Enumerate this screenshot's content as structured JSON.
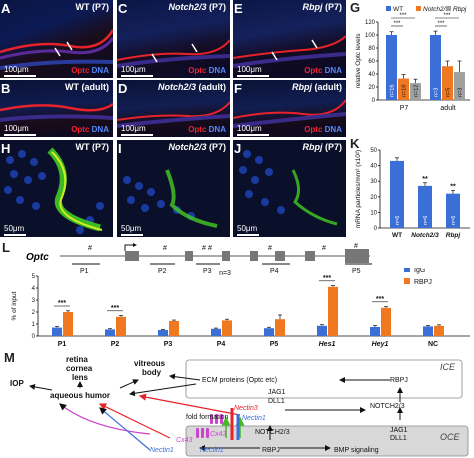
{
  "panels": {
    "A": {
      "letter": "A",
      "title": "WT (P7)",
      "scale": "100μm",
      "stain_a": "Optc",
      "stain_b": "DNA"
    },
    "B": {
      "letter": "B",
      "title": "WT (adult)",
      "scale": "100μm",
      "stain_a": "Optc",
      "stain_b": "DNA"
    },
    "C": {
      "letter": "C",
      "title_it": "Notch2/3",
      "title_rest": " (P7)",
      "scale": "100μm",
      "stain_a": "Optc",
      "stain_b": "DNA"
    },
    "D": {
      "letter": "D",
      "title_it": "Notch2/3",
      "title_rest": " (adult)",
      "scale": "100μm",
      "stain_a": "Optc",
      "stain_b": "DNA"
    },
    "E": {
      "letter": "E",
      "title_it": "Rbpj",
      "title_rest": " (P7)",
      "scale": "100μm",
      "stain_a": "Optc",
      "stain_b": "DNA"
    },
    "F": {
      "letter": "F",
      "title_it": "Rbpj",
      "title_rest": " (adult)",
      "scale": "100μm",
      "stain_a": "Optc",
      "stain_b": "DNA"
    },
    "H": {
      "letter": "H",
      "title": "WT (P7)",
      "scale": "50μm"
    },
    "I": {
      "letter": "I",
      "title_it": "Notch2/3",
      "title_rest": " (P7)",
      "scale": "50μm"
    },
    "J": {
      "letter": "J",
      "title_it": "Rbpj",
      "title_rest": " (P7)",
      "scale": "50μm"
    },
    "G": {
      "letter": "G"
    },
    "K": {
      "letter": "K"
    },
    "L": {
      "letter": "L"
    },
    "M": {
      "letter": "M"
    }
  },
  "chart_data": [
    {
      "id": "G",
      "type": "bar",
      "ylabel": "relative Optc levels",
      "ylim": [
        0,
        120
      ],
      "yticks": [
        0,
        20,
        40,
        60,
        80,
        100,
        120
      ],
      "categories": [
        "P7",
        "adult"
      ],
      "series": [
        {
          "name": "WT",
          "color": "#3a6fd8",
          "values": [
            100,
            100
          ],
          "errors": [
            5,
            6
          ],
          "n": [
            "n=16",
            "n=3"
          ]
        },
        {
          "name": "Notch2/3",
          "color": "#f07820",
          "values": [
            33,
            52
          ],
          "errors": [
            6,
            8
          ],
          "n": [
            "n=10",
            "n=5"
          ]
        },
        {
          "name": "Rbpj",
          "color": "#a0a0a0",
          "values": [
            26,
            43
          ],
          "errors": [
            6,
            17
          ],
          "n": [
            "n=12",
            "n=3"
          ]
        }
      ],
      "sig": [
        "***",
        "***",
        "***",
        "***"
      ]
    },
    {
      "id": "K",
      "type": "bar",
      "ylabel": "mRNA particles/mm² (x10²)",
      "ylim": [
        0,
        50
      ],
      "yticks": [
        0,
        10,
        20,
        30,
        40,
        50
      ],
      "categories": [
        "WT",
        "Notch2/3",
        "Rbpj"
      ],
      "values": [
        43,
        27,
        22
      ],
      "errors": [
        2,
        2,
        2
      ],
      "n": [
        "n=6",
        "n=6",
        "n=6"
      ],
      "sig": [
        "",
        "**",
        "**"
      ],
      "color": "#3a6fd8"
    },
    {
      "id": "L",
      "type": "bar",
      "title": "n=3",
      "ylabel": "% of input",
      "ylim": [
        0,
        5
      ],
      "yticks": [
        0,
        1,
        2,
        3,
        4,
        5
      ],
      "categories": [
        "P1",
        "P2",
        "P3",
        "P4",
        "P5",
        "Hes1",
        "Hey1",
        "NC"
      ],
      "series": [
        {
          "name": "IgG",
          "color": "#3a6fd8",
          "values": [
            0.7,
            0.55,
            0.5,
            0.6,
            0.65,
            0.85,
            0.75,
            0.8
          ]
        },
        {
          "name": "RBPJ",
          "color": "#f07820",
          "values": [
            2.0,
            1.6,
            1.25,
            1.3,
            1.4,
            4.1,
            2.35,
            0.85
          ]
        }
      ],
      "errors_a": [
        0.08,
        0.06,
        0.05,
        0.06,
        0.08,
        0.1,
        0.12,
        0.08
      ],
      "errors_b": [
        0.1,
        0.12,
        0.08,
        0.1,
        0.35,
        0.1,
        0.1,
        0.08
      ],
      "sig": [
        "***",
        "***",
        "",
        "",
        "",
        "***",
        "***",
        ""
      ]
    }
  ],
  "gene": {
    "name": "Optc",
    "hash": "#",
    "primers": [
      "P1",
      "P2",
      "P3",
      "P4",
      "P5"
    ]
  },
  "diagram": {
    "iop": "IOP",
    "retina": "retina",
    "cornea": "cornea",
    "lens": "lens",
    "vitreous1": "vitreous",
    "vitreous2": "body",
    "aqueous": "aqueous humor",
    "ecm": "ECM proteins (Optc etc)",
    "rbpj_top": "RBPJ",
    "ice": "ICE",
    "jag1": "JAG1",
    "dll1": "DLL1",
    "notch23": "NOTCH2/3",
    "nectin3": "Nectin3",
    "nectin1a": "Nectin1",
    "fold": "fold formation",
    "cx43a": "Cx43",
    "cx43b": "Cx43",
    "notch2": "NOTCH2/3",
    "rbpj_bot": "RBPJ",
    "jag1b": "JAG1",
    "dll1b": "DLL1",
    "oce": "OCE",
    "bmp": "BMP signaling",
    "nectin1b": "Nectin1",
    "nectin1c": "Nectin1"
  },
  "colors": {
    "wt": "#3a6fd8",
    "notch": "#f07820",
    "rbpj": "#a0a0a0"
  }
}
